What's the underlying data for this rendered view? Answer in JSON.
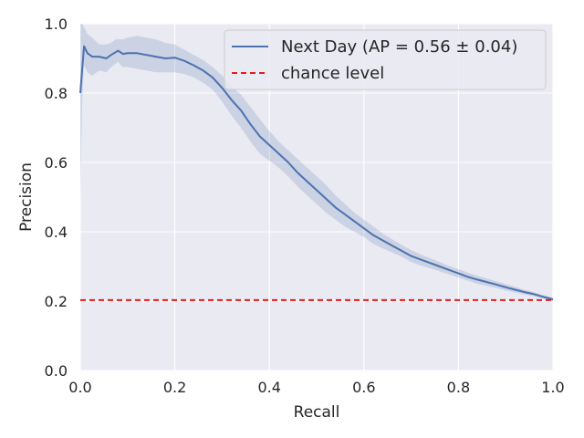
{
  "chart_data": {
    "type": "line",
    "xlabel": "Recall",
    "ylabel": "Precision",
    "xlim": [
      0,
      1
    ],
    "ylim": [
      0,
      1
    ],
    "x_ticks": [
      "0.0",
      "0.2",
      "0.4",
      "0.6",
      "0.8",
      "1.0"
    ],
    "y_ticks": [
      "0.0",
      "0.2",
      "0.4",
      "0.6",
      "0.8",
      "1.0"
    ],
    "grid": true,
    "legend_position": "top-right",
    "colors": {
      "background": "#eaeaf2",
      "grid": "#ffffff",
      "series": "#4c72b0",
      "band": "#4c72b0",
      "chance": "#e41a1c"
    },
    "series": [
      {
        "name": "Next Day (AP = 0.56 ± 0.04)",
        "style": "solid",
        "x": [
          0.0,
          0.004,
          0.008,
          0.015,
          0.025,
          0.04,
          0.055,
          0.065,
          0.075,
          0.08,
          0.09,
          0.1,
          0.12,
          0.14,
          0.16,
          0.18,
          0.2,
          0.22,
          0.24,
          0.26,
          0.28,
          0.3,
          0.32,
          0.34,
          0.36,
          0.38,
          0.4,
          0.42,
          0.44,
          0.46,
          0.48,
          0.5,
          0.52,
          0.54,
          0.56,
          0.58,
          0.6,
          0.62,
          0.64,
          0.66,
          0.68,
          0.7,
          0.72,
          0.74,
          0.76,
          0.78,
          0.8,
          0.82,
          0.84,
          0.86,
          0.88,
          0.9,
          0.92,
          0.94,
          0.96,
          0.98,
          1.0
        ],
        "y": [
          0.8,
          0.87,
          0.935,
          0.915,
          0.905,
          0.905,
          0.9,
          0.91,
          0.918,
          0.922,
          0.913,
          0.915,
          0.915,
          0.91,
          0.905,
          0.9,
          0.902,
          0.893,
          0.88,
          0.865,
          0.845,
          0.815,
          0.78,
          0.75,
          0.71,
          0.675,
          0.65,
          0.625,
          0.6,
          0.57,
          0.545,
          0.52,
          0.495,
          0.47,
          0.45,
          0.43,
          0.41,
          0.39,
          0.375,
          0.36,
          0.345,
          0.33,
          0.32,
          0.31,
          0.3,
          0.29,
          0.28,
          0.27,
          0.262,
          0.255,
          0.248,
          0.24,
          0.233,
          0.226,
          0.22,
          0.212,
          0.205
        ],
        "band_upper": [
          1.0,
          1.0,
          0.99,
          0.97,
          0.96,
          0.94,
          0.94,
          0.945,
          0.955,
          0.955,
          0.955,
          0.96,
          0.965,
          0.96,
          0.955,
          0.945,
          0.94,
          0.925,
          0.91,
          0.895,
          0.875,
          0.85,
          0.82,
          0.795,
          0.76,
          0.725,
          0.69,
          0.66,
          0.635,
          0.61,
          0.585,
          0.56,
          0.535,
          0.505,
          0.48,
          0.455,
          0.435,
          0.415,
          0.395,
          0.378,
          0.362,
          0.347,
          0.335,
          0.324,
          0.313,
          0.302,
          0.292,
          0.282,
          0.273,
          0.265,
          0.257,
          0.249,
          0.241,
          0.233,
          0.226,
          0.218,
          0.21
        ],
        "band_lower": [
          0.5,
          0.78,
          0.88,
          0.86,
          0.85,
          0.865,
          0.86,
          0.875,
          0.885,
          0.89,
          0.875,
          0.875,
          0.87,
          0.865,
          0.86,
          0.86,
          0.86,
          0.855,
          0.845,
          0.83,
          0.81,
          0.775,
          0.735,
          0.7,
          0.66,
          0.625,
          0.605,
          0.585,
          0.56,
          0.53,
          0.505,
          0.48,
          0.455,
          0.435,
          0.415,
          0.4,
          0.385,
          0.365,
          0.352,
          0.34,
          0.328,
          0.313,
          0.303,
          0.295,
          0.286,
          0.277,
          0.268,
          0.259,
          0.25,
          0.244,
          0.238,
          0.231,
          0.225,
          0.219,
          0.214,
          0.207,
          0.2
        ]
      },
      {
        "name": "chance level",
        "style": "dashed",
        "x": [
          0,
          1
        ],
        "y": [
          0.203,
          0.203
        ]
      }
    ]
  }
}
